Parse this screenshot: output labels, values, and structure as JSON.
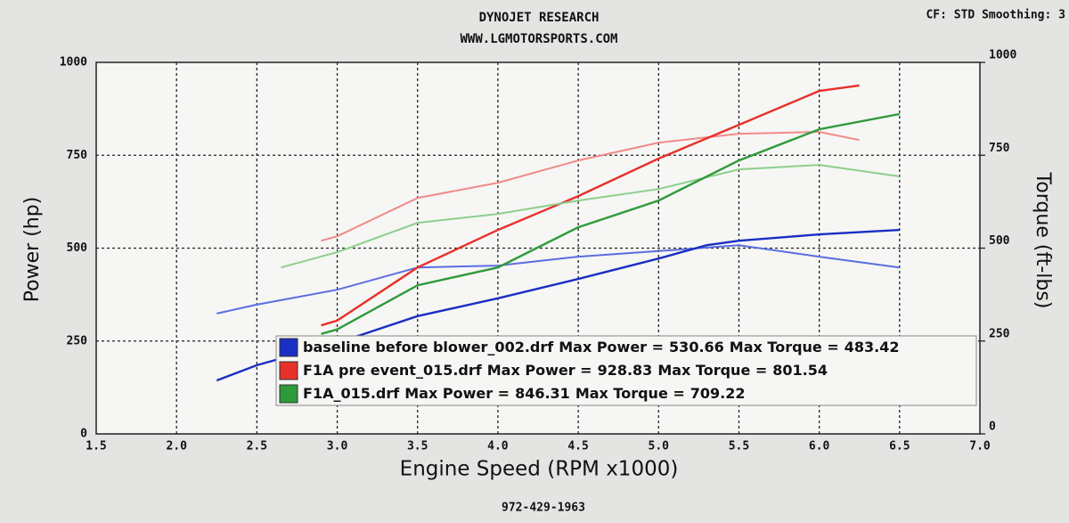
{
  "chart_data": {
    "type": "line",
    "title": "DYNOJET RESEARCH",
    "subtitle": "WWW.LGMOTORSPORTS.COM",
    "settings_text": "CF: STD  Smoothing: 3",
    "footer": "972-429-1963",
    "x_label": "Engine Speed (RPM x1000)",
    "y_label": "Power (hp)",
    "y2_label": "Torque (ft-lbs)",
    "max_power_label": "Max Power =",
    "max_torque_label": "Max Torque =",
    "xlim": [
      1.5,
      7.0
    ],
    "xticks": [
      1.5,
      {
        "value": 2,
        "label": "2.0"
      },
      2.5,
      {
        "value": 3,
        "label": "3.0"
      },
      3.5,
      {
        "value": 4,
        "label": "4.0"
      },
      4.5,
      {
        "value": 5,
        "label": "5.0"
      },
      5.5,
      {
        "value": 6,
        "label": "6.0"
      },
      6.5,
      {
        "value": 7,
        "label": "7.0"
      }
    ],
    "ylim": [
      0,
      1000
    ],
    "yticks": [
      0,
      250,
      500,
      750,
      1000
    ],
    "y2lim": [
      0,
      1000
    ],
    "y2ticks": [
      0,
      250,
      500,
      750,
      1000
    ],
    "grid": true,
    "series": [
      {
        "name": "baseline before blower_002.drf",
        "color": "#1a2fc4",
        "torque_color": "#5a6ee0",
        "x": [
          2.25,
          2.5,
          3.0,
          3.5,
          4.0,
          4.5,
          5.0,
          5.3,
          5.5,
          6.0,
          6.5
        ],
        "power": [
          144,
          185,
          245,
          317,
          365,
          417,
          472,
          508,
          520,
          537,
          549
        ],
        "torque_x": [
          2.25,
          2.5,
          3.0,
          3.5,
          4.0,
          4.5,
          5.0,
          5.5,
          6.0,
          6.5
        ],
        "torque": [
          324,
          348,
          388,
          448,
          453,
          477,
          492,
          508,
          477,
          448
        ],
        "max_power": 530.66,
        "max_torque": 483.42
      },
      {
        "name": "F1A pre event_015.drf",
        "color": "#e8302a",
        "torque_color": "#f08a88",
        "x": [
          2.9,
          3.0,
          3.5,
          4.0,
          4.5,
          5.0,
          5.5,
          6.0,
          6.25
        ],
        "power": [
          292,
          305,
          448,
          549,
          640,
          741,
          832,
          923,
          938
        ],
        "torque_x": [
          2.9,
          3.0,
          3.5,
          4.0,
          4.5,
          5.0,
          5.5,
          6.0,
          6.25
        ],
        "torque": [
          520,
          532,
          635,
          676,
          736,
          784,
          808,
          813,
          791
        ],
        "max_power": 928.83,
        "max_torque": 801.54
      },
      {
        "name": "F1A_015.drf",
        "color": "#2e9a3a",
        "torque_color": "#8ccf8c",
        "x": [
          2.9,
          3.0,
          3.5,
          4.0,
          4.5,
          5.0,
          5.5,
          6.0,
          6.5
        ],
        "power": [
          269,
          281,
          400,
          448,
          556,
          628,
          736,
          820,
          861
        ],
        "torque_x": [
          2.65,
          3.0,
          3.5,
          4.0,
          4.5,
          5.0,
          5.5,
          6.0,
          6.5
        ],
        "torque": [
          448,
          489,
          568,
          592,
          628,
          659,
          712,
          724,
          693
        ],
        "max_power": 846.31,
        "max_torque": 709.22
      }
    ]
  }
}
